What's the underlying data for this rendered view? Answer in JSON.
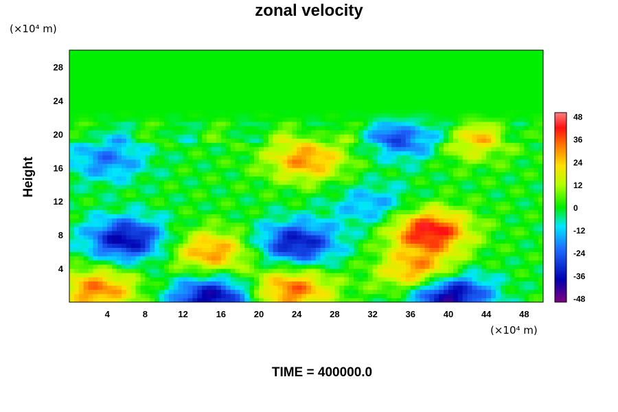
{
  "chart_data": {
    "type": "heatmap",
    "title": "zonal velocity",
    "ylabel": "Height",
    "x_unit": "(×10⁴ m)",
    "y_unit": "(×10⁴ m)",
    "footer": "TIME = 400000.0",
    "x_ticks": [
      "4",
      "8",
      "12",
      "16",
      "20",
      "24",
      "28",
      "32",
      "36",
      "40",
      "44",
      "48"
    ],
    "y_ticks": [
      "4",
      "8",
      "12",
      "16",
      "20",
      "24",
      "28"
    ],
    "xlim": [
      0,
      50
    ],
    "ylim": [
      0,
      30
    ],
    "colorbar": {
      "ticks": [
        "48",
        "36",
        "24",
        "12",
        "0",
        "-12",
        "-24",
        "-36",
        "-48"
      ],
      "range": [
        -50,
        50
      ]
    },
    "features": [
      {
        "x": 6,
        "y": 7.5,
        "value": -38
      },
      {
        "x": 3,
        "y": 1.5,
        "value": 32
      },
      {
        "x": 15,
        "y": 6,
        "value": 30
      },
      {
        "x": 24,
        "y": 7,
        "value": -36
      },
      {
        "x": 23.5,
        "y": 1.5,
        "value": 34
      },
      {
        "x": 15,
        "y": 0.5,
        "value": -40
      },
      {
        "x": 38,
        "y": 8.5,
        "value": 44
      },
      {
        "x": 40,
        "y": 1,
        "value": -46
      },
      {
        "x": 37,
        "y": 3.5,
        "value": 34
      },
      {
        "x": 25,
        "y": 17,
        "value": 30
      },
      {
        "x": 42,
        "y": 19.5,
        "value": 24
      },
      {
        "x": 36,
        "y": 19.8,
        "value": -30
      },
      {
        "x": 4,
        "y": 17,
        "value": -20
      },
      {
        "x": 32,
        "y": 11.5,
        "value": -16
      }
    ]
  }
}
